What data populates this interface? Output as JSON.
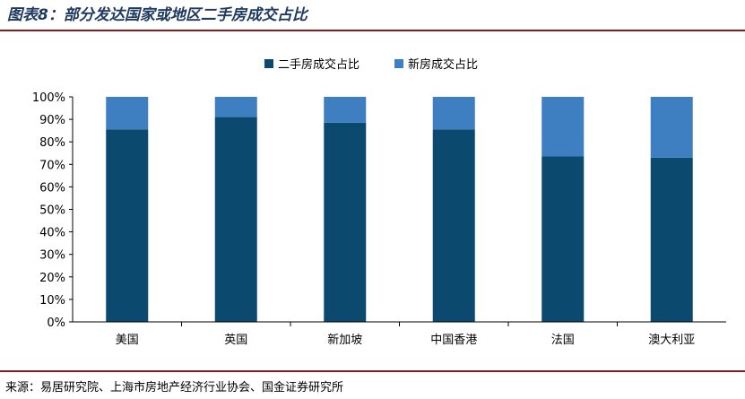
{
  "header": {
    "title": "图表8：部分发达国家或地区二手房成交占比"
  },
  "footer": {
    "source": "来源：易居研究院、上海市房地产经济行业协会、国金证券研究所"
  },
  "chart_data": {
    "type": "bar",
    "stacked": true,
    "categories": [
      "美国",
      "英国",
      "新加坡",
      "中国香港",
      "法国",
      "澳大利亚"
    ],
    "series": [
      {
        "name": "二手房成交占比",
        "color": "#0b4a6e",
        "values": [
          85.5,
          91,
          88.5,
          85.5,
          73.5,
          73
        ]
      },
      {
        "name": "新房成交占比",
        "color": "#3e7fc1",
        "values": [
          14.5,
          9,
          11.5,
          14.5,
          26.5,
          27
        ]
      }
    ],
    "ylim": [
      0,
      100
    ],
    "yticks": [
      "0%",
      "10%",
      "20%",
      "30%",
      "40%",
      "50%",
      "60%",
      "70%",
      "80%",
      "90%",
      "100%"
    ],
    "legend": "top-center",
    "grid": false
  }
}
